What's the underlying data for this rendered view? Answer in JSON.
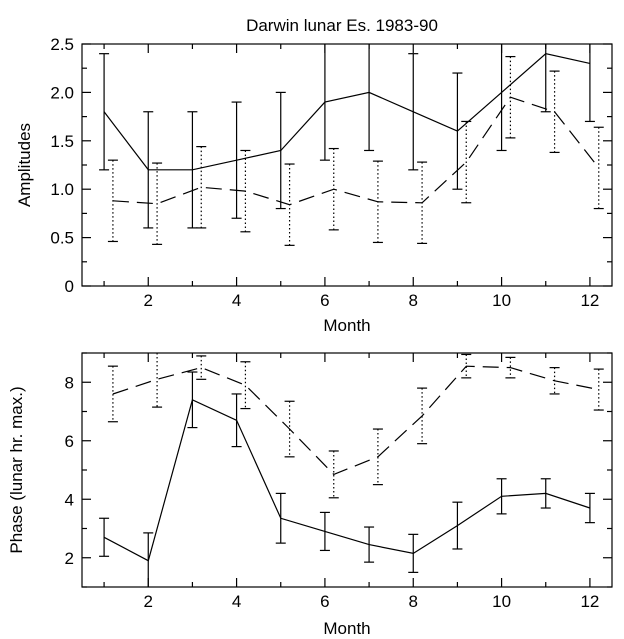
{
  "chart_data": [
    {
      "type": "line",
      "title": "Darwin lunar Es. 1983-90",
      "xlabel": "Month",
      "ylabel": "Amplitudes",
      "xlim": [
        0.5,
        12.5
      ],
      "ylim": [
        0,
        2.5
      ],
      "xticks": [
        2,
        4,
        6,
        8,
        10,
        12
      ],
      "yticks": [
        0,
        0.5,
        1.0,
        1.5,
        2.0,
        2.5
      ],
      "ytick_labels": [
        "0",
        "0.5",
        "1.0",
        "1.5",
        "2.0",
        "2.5"
      ],
      "grid": false,
      "series": [
        {
          "style": "solid",
          "errorbar": "solid",
          "x": [
            1,
            2,
            3,
            4,
            5,
            6,
            7,
            8,
            9,
            10,
            11,
            12
          ],
          "y": [
            1.8,
            1.2,
            1.2,
            1.3,
            1.4,
            1.9,
            2.0,
            1.8,
            1.6,
            2.0,
            2.4,
            2.3
          ],
          "err": [
            0.6,
            0.6,
            0.6,
            0.6,
            0.6,
            0.6,
            0.6,
            0.6,
            0.6,
            0.6,
            0.6,
            0.6
          ]
        },
        {
          "style": "dashed",
          "errorbar": "dotted",
          "x": [
            1.2,
            2.2,
            3.2,
            4.2,
            5.2,
            6.2,
            7.2,
            8.2,
            9.2,
            10.2,
            11.2,
            12.2
          ],
          "y": [
            0.88,
            0.85,
            1.02,
            0.98,
            0.84,
            1.0,
            0.87,
            0.86,
            1.28,
            1.95,
            1.8,
            1.22
          ],
          "err": [
            0.42,
            0.42,
            0.42,
            0.42,
            0.42,
            0.42,
            0.42,
            0.42,
            0.42,
            0.42,
            0.42,
            0.42
          ]
        }
      ]
    },
    {
      "type": "line",
      "title": "",
      "xlabel": "Month",
      "ylabel": "Phase (lunar hr. max.)",
      "xlim": [
        0.5,
        12.5
      ],
      "ylim": [
        1.0,
        9.0
      ],
      "xticks": [
        2,
        4,
        6,
        8,
        10,
        12
      ],
      "yticks": [
        2,
        4,
        6,
        8
      ],
      "ytick_labels": [
        "2",
        "4",
        "6",
        "8"
      ],
      "grid": false,
      "series": [
        {
          "style": "solid",
          "errorbar": "solid",
          "x": [
            1,
            2,
            3,
            4,
            5,
            6,
            7,
            8,
            9,
            10,
            11,
            12
          ],
          "y": [
            2.7,
            1.9,
            7.4,
            6.7,
            3.35,
            2.9,
            2.45,
            2.15,
            3.1,
            4.1,
            4.2,
            3.7
          ],
          "err": [
            0.65,
            0.95,
            0.95,
            0.9,
            0.85,
            0.65,
            0.6,
            0.65,
            0.8,
            0.6,
            0.5,
            0.5
          ]
        },
        {
          "style": "dashed",
          "errorbar": "dotted",
          "x": [
            1.2,
            2.2,
            3.2,
            4.2,
            5.2,
            6.2,
            7.2,
            8.2,
            9.2,
            10.2,
            11.2,
            12.2
          ],
          "y": [
            7.6,
            8.1,
            8.5,
            7.9,
            6.4,
            4.85,
            5.45,
            6.85,
            8.55,
            8.5,
            8.05,
            7.75
          ],
          "err": [
            0.95,
            0.95,
            0.4,
            0.8,
            0.95,
            0.8,
            0.95,
            0.95,
            0.4,
            0.35,
            0.45,
            0.7
          ]
        }
      ]
    }
  ]
}
